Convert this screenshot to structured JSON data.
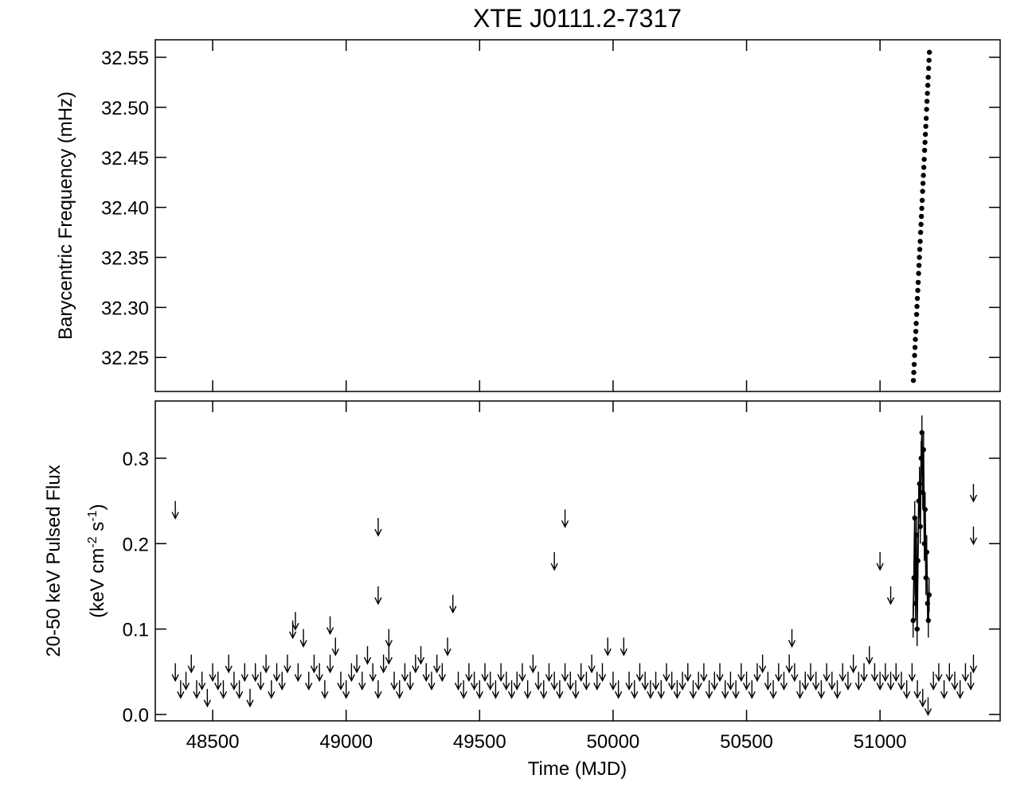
{
  "chart_data": [
    {
      "type": "scatter",
      "title": "XTE J0111.2-7317",
      "ylabel": "Barycentric Frequency (mHz)",
      "color": "#000000",
      "x": [
        51125,
        51126.5,
        51128,
        51129.5,
        51131,
        51132.5,
        51134,
        51135.5,
        51137,
        51138.5,
        51140,
        51141.5,
        51143,
        51144.5,
        51146,
        51147.5,
        51149,
        51150.5,
        51152,
        51153.5,
        51155,
        51156.5,
        51158,
        51159.5,
        51161,
        51162.5,
        51164,
        51165.5,
        51167,
        51168.5,
        51170,
        51171.5,
        51173,
        51174.5,
        51176,
        51177.5,
        51179,
        51180.5,
        51182,
        51183.5,
        51185
      ],
      "values": [
        32.227,
        32.235,
        32.243,
        32.252,
        32.26,
        32.268,
        32.276,
        32.284,
        32.293,
        32.301,
        32.309,
        32.317,
        32.325,
        32.334,
        32.342,
        32.35,
        32.358,
        32.366,
        32.375,
        32.383,
        32.391,
        32.399,
        32.407,
        32.416,
        32.424,
        32.432,
        32.44,
        32.448,
        32.457,
        32.465,
        32.473,
        32.481,
        32.489,
        32.498,
        32.506,
        32.514,
        32.522,
        32.53,
        32.539,
        32.547,
        32.555
      ],
      "xlim": [
        48285,
        51450
      ],
      "xticks": [
        48500,
        49000,
        49500,
        50000,
        50500,
        51000
      ],
      "ylim": [
        32.216,
        32.5675
      ],
      "yticks": [
        32.25,
        {
          "value": 32.3,
          "label": "32.30"
        },
        32.35,
        {
          "value": 32.4,
          "label": "32.40"
        },
        32.45,
        {
          "value": 32.5,
          "label": "32.50"
        },
        32.55
      ]
    },
    {
      "type": "scatter",
      "xlabel": "Time (MJD)",
      "ylabel": "20-50 keV Pulsed Flux",
      "ylabel2": [
        "(keV cm",
        "-2",
        " s",
        "-1",
        ")"
      ],
      "color": "#000000",
      "upper_limits": {
        "x": [
          48360,
          48380,
          48400,
          48420,
          48440,
          48460,
          48480,
          48500,
          48520,
          48540,
          48560,
          48580,
          48600,
          48620,
          48640,
          48660,
          48680,
          48700,
          48720,
          48740,
          48760,
          48780,
          48800,
          48820,
          48840,
          48860,
          48880,
          48900,
          48920,
          48940,
          48960,
          48980,
          49000,
          49020,
          49040,
          49060,
          49080,
          49100,
          49120,
          49140,
          49160,
          49180,
          49200,
          49220,
          49240,
          49260,
          49280,
          49300,
          49320,
          49340,
          49360,
          49380,
          49400,
          49420,
          49440,
          49460,
          49480,
          49500,
          49520,
          49540,
          49560,
          49580,
          49600,
          49620,
          49640,
          49660,
          49680,
          49700,
          49720,
          49740,
          49760,
          49780,
          49800,
          49820,
          49840,
          49860,
          49880,
          49900,
          49920,
          49940,
          49960,
          49980,
          50000,
          50020,
          50040,
          50060,
          50080,
          50100,
          50120,
          50140,
          50160,
          50180,
          50200,
          50220,
          50240,
          50260,
          50280,
          50300,
          50320,
          50340,
          50360,
          50380,
          50400,
          50420,
          50440,
          50460,
          50480,
          50500,
          50520,
          50540,
          50560,
          50580,
          50600,
          50620,
          50640,
          50660,
          50680,
          50700,
          50720,
          50740,
          50760,
          50780,
          50800,
          50820,
          50840,
          50860,
          50880,
          50900,
          50920,
          50940,
          50960,
          50980,
          51000,
          51020,
          51040,
          51060,
          51080,
          51100,
          51120,
          51140,
          51160,
          51180,
          51200,
          51220,
          51240,
          51260,
          51280,
          51300,
          51320,
          51340,
          48360,
          48810,
          48940,
          49120,
          49120,
          49160,
          49780,
          49820,
          50670,
          51000,
          51040,
          51350,
          51350,
          51350
        ],
        "values": [
          0.06,
          0.04,
          0.05,
          0.07,
          0.04,
          0.05,
          0.03,
          0.06,
          0.05,
          0.04,
          0.07,
          0.05,
          0.04,
          0.06,
          0.03,
          0.06,
          0.05,
          0.07,
          0.04,
          0.06,
          0.05,
          0.07,
          0.11,
          0.06,
          0.1,
          0.05,
          0.07,
          0.06,
          0.04,
          0.07,
          0.09,
          0.05,
          0.04,
          0.06,
          0.07,
          0.05,
          0.08,
          0.06,
          0.04,
          0.07,
          0.08,
          0.05,
          0.04,
          0.06,
          0.05,
          0.07,
          0.08,
          0.06,
          0.05,
          0.07,
          0.06,
          0.09,
          0.14,
          0.05,
          0.04,
          0.06,
          0.05,
          0.04,
          0.06,
          0.05,
          0.04,
          0.06,
          0.05,
          0.04,
          0.05,
          0.06,
          0.04,
          0.07,
          0.05,
          0.04,
          0.06,
          0.05,
          0.04,
          0.06,
          0.05,
          0.04,
          0.06,
          0.05,
          0.07,
          0.05,
          0.06,
          0.09,
          0.05,
          0.04,
          0.09,
          0.05,
          0.04,
          0.06,
          0.05,
          0.04,
          0.05,
          0.04,
          0.06,
          0.05,
          0.04,
          0.05,
          0.06,
          0.04,
          0.05,
          0.06,
          0.04,
          0.05,
          0.06,
          0.04,
          0.05,
          0.04,
          0.06,
          0.05,
          0.04,
          0.06,
          0.07,
          0.05,
          0.04,
          0.06,
          0.05,
          0.07,
          0.06,
          0.04,
          0.05,
          0.06,
          0.05,
          0.04,
          0.06,
          0.05,
          0.04,
          0.06,
          0.05,
          0.07,
          0.05,
          0.06,
          0.08,
          0.06,
          0.05,
          0.06,
          0.05,
          0.06,
          0.05,
          0.04,
          0.06,
          0.04,
          0.03,
          0.02,
          0.05,
          0.06,
          0.04,
          0.06,
          0.05,
          0.04,
          0.06,
          0.05,
          0.25,
          0.12,
          0.115,
          0.23,
          0.15,
          0.1,
          0.19,
          0.24,
          0.1,
          0.19,
          0.15,
          0.27,
          0.22,
          0.07
        ]
      },
      "detections": {
        "x": [
          51124,
          51127,
          51130,
          51133,
          51136,
          51139,
          51142,
          51145,
          51148,
          51151,
          51154,
          51157,
          51160,
          51163,
          51166,
          51169,
          51172,
          51175,
          51178,
          51181,
          51184
        ],
        "values": [
          0.11,
          0.16,
          0.23,
          0.13,
          0.21,
          0.1,
          0.18,
          0.25,
          0.27,
          0.22,
          0.3,
          0.33,
          0.26,
          0.31,
          0.2,
          0.24,
          0.16,
          0.19,
          0.13,
          0.11,
          0.14
        ],
        "errors": [
          0.02,
          0.02,
          0.02,
          0.02,
          0.02,
          0.02,
          0.02,
          0.02,
          0.02,
          0.02,
          0.02,
          0.02,
          0.02,
          0.02,
          0.02,
          0.02,
          0.02,
          0.02,
          0.02,
          0.02,
          0.02
        ]
      },
      "xlim": [
        48285,
        51450
      ],
      "xticks": [
        48500,
        49000,
        49500,
        50000,
        50500,
        51000
      ],
      "ylim": [
        -0.0075,
        0.367
      ],
      "yticks": [
        {
          "value": 0,
          "label": "0.0"
        },
        0.1,
        0.2,
        0.3
      ]
    }
  ]
}
